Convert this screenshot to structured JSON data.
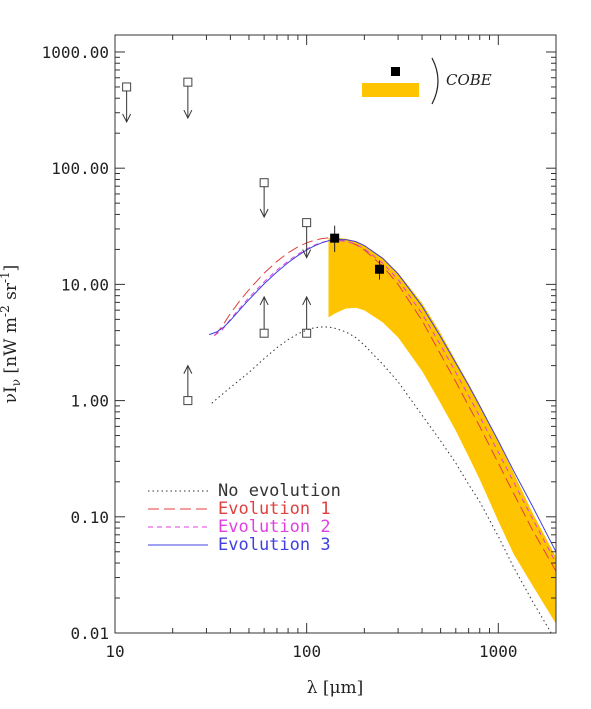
{
  "chart_data": {
    "type": "line",
    "xlabel": "λ [μm]",
    "ylabel": "νI",
    "ylabel_sub": "ν",
    "ylabel_rest": " [nW m",
    "ylabel_sup1": "-2",
    "ylabel_mid": " sr",
    "ylabel_sup2": "-1",
    "ylabel_end": "]",
    "x_scale": "log",
    "y_scale": "log",
    "xlim": [
      10,
      2000
    ],
    "ylim": [
      0.01,
      1400
    ],
    "x_ticks": [
      {
        "value": 10,
        "label": "10"
      },
      {
        "value": 100,
        "label": "100"
      },
      {
        "value": 1000,
        "label": "1000"
      }
    ],
    "y_ticks": [
      {
        "value": 0.01,
        "label": "0.01"
      },
      {
        "value": 0.1,
        "label": "0.10"
      },
      {
        "value": 1,
        "label": "1.00"
      },
      {
        "value": 10,
        "label": "10.00"
      },
      {
        "value": 100,
        "label": "100.00"
      },
      {
        "value": 1000,
        "label": "1000.00"
      }
    ],
    "series": [
      {
        "name": "No evolution",
        "style": "dotted",
        "color": "#333333",
        "x": [
          32,
          40,
          50,
          60,
          70,
          80,
          90,
          100,
          110,
          120,
          130,
          140,
          160,
          180,
          200,
          250,
          300,
          400,
          500,
          600,
          700,
          800,
          1000,
          1200,
          1500,
          2000
        ],
        "y": [
          0.95,
          1.3,
          1.75,
          2.3,
          2.85,
          3.35,
          3.75,
          4.05,
          4.25,
          4.3,
          4.3,
          4.2,
          3.9,
          3.5,
          3.0,
          2.05,
          1.45,
          0.75,
          0.45,
          0.29,
          0.19,
          0.135,
          0.068,
          0.037,
          0.019,
          0.0085
        ]
      },
      {
        "name": "Evolution 1",
        "style": "long-dash",
        "color": "#e04040",
        "x": [
          33,
          36,
          40,
          45,
          50,
          60,
          70,
          80,
          90,
          100,
          110,
          120,
          130,
          140,
          160,
          180,
          200,
          250,
          300,
          400,
          500,
          600,
          700,
          800,
          1000,
          1200,
          1500,
          2000
        ],
        "y": [
          3.6,
          4.3,
          5.6,
          7.3,
          9.0,
          12.5,
          15.8,
          18.7,
          21.0,
          22.8,
          24.0,
          24.8,
          25.1,
          25.0,
          23.8,
          22.0,
          19.8,
          14.3,
          10.0,
          4.9,
          2.5,
          1.45,
          0.9,
          0.6,
          0.29,
          0.16,
          0.078,
          0.034
        ]
      },
      {
        "name": "Evolution 2",
        "style": "short-dash",
        "color": "#e040e0",
        "x": [
          33,
          36,
          40,
          45,
          50,
          60,
          70,
          80,
          90,
          100,
          110,
          120,
          130,
          140,
          160,
          180,
          200,
          250,
          300,
          400,
          500,
          600,
          700,
          800,
          1000,
          1200,
          1500,
          2000
        ],
        "y": [
          3.65,
          4.0,
          5.0,
          6.3,
          7.7,
          10.5,
          13.3,
          15.9,
          18.2,
          20.2,
          21.8,
          23.0,
          23.7,
          24.0,
          23.5,
          22.2,
          20.3,
          15.2,
          11.0,
          5.6,
          3.0,
          1.75,
          1.1,
          0.73,
          0.36,
          0.2,
          0.098,
          0.04
        ]
      },
      {
        "name": "Evolution 3",
        "style": "solid",
        "color": "#4040e0",
        "x": [
          31,
          34,
          37,
          40,
          45,
          50,
          60,
          70,
          80,
          90,
          100,
          110,
          120,
          130,
          140,
          160,
          180,
          200,
          250,
          300,
          400,
          500,
          600,
          700,
          800,
          1000,
          1200,
          1500,
          2000
        ],
        "y": [
          3.7,
          3.9,
          4.3,
          4.9,
          6.1,
          7.4,
          10.1,
          12.8,
          15.4,
          17.7,
          19.8,
          21.5,
          22.8,
          23.7,
          24.2,
          24.3,
          23.4,
          21.6,
          16.7,
          12.3,
          6.5,
          3.55,
          2.1,
          1.35,
          0.9,
          0.45,
          0.25,
          0.125,
          0.05
        ]
      }
    ],
    "cobe_band": {
      "name": "COBE",
      "color": "#ffc400",
      "upper": {
        "x": [
          130,
          140,
          160,
          180,
          200,
          250,
          300,
          400,
          500,
          600,
          700,
          800,
          1000,
          1200,
          1500,
          2000
        ],
        "y": [
          25,
          25.3,
          24.8,
          23.5,
          21.8,
          17.0,
          12.6,
          6.9,
          3.8,
          2.2,
          1.4,
          0.93,
          0.45,
          0.24,
          0.11,
          0.045
        ]
      },
      "lower": {
        "x": [
          130,
          140,
          160,
          180,
          200,
          250,
          300,
          400,
          500,
          600,
          700,
          800,
          1000,
          1200,
          1500,
          2000
        ],
        "y": [
          5.2,
          5.6,
          6.2,
          6.3,
          6.0,
          4.7,
          3.5,
          1.8,
          0.95,
          0.55,
          0.33,
          0.21,
          0.092,
          0.048,
          0.026,
          0.012
        ]
      }
    },
    "cobe_points": [
      {
        "x": 140,
        "y": 25,
        "err_low": 19,
        "err_high": 32
      },
      {
        "x": 240,
        "y": 13.5,
        "err_low": 11,
        "err_high": 16
      }
    ],
    "upper_limits": [
      {
        "x": 11.5,
        "y": 500,
        "tip": 250
      },
      {
        "x": 24,
        "y": 550,
        "tip": 270
      },
      {
        "x": 60,
        "y": 75,
        "tip": 38
      },
      {
        "x": 100,
        "y": 34,
        "tip": 17
      }
    ],
    "lower_limits": [
      {
        "x": 24,
        "y": 1.0,
        "tip": 2.0
      },
      {
        "x": 60,
        "y": 3.8,
        "tip": 7.8
      },
      {
        "x": 100,
        "y": 3.8,
        "tip": 7.8
      }
    ],
    "legend": {
      "placement": "bottom-left",
      "entries": [
        {
          "label": "No evolution",
          "color": "#333333",
          "text_color": "#333333",
          "style": "dotted"
        },
        {
          "label": "Evolution 1",
          "color": "#e04040",
          "text_color": "#e04040",
          "style": "long-dash"
        },
        {
          "label": "Evolution 2",
          "color": "#e040e0",
          "text_color": "#e040e0",
          "style": "short-dash"
        },
        {
          "label": "Evolution 3",
          "color": "#4040e0",
          "text_color": "#4040e0",
          "style": "solid"
        }
      ]
    },
    "cobe_legend": {
      "label": "COBE",
      "placement": "top-right"
    }
  }
}
